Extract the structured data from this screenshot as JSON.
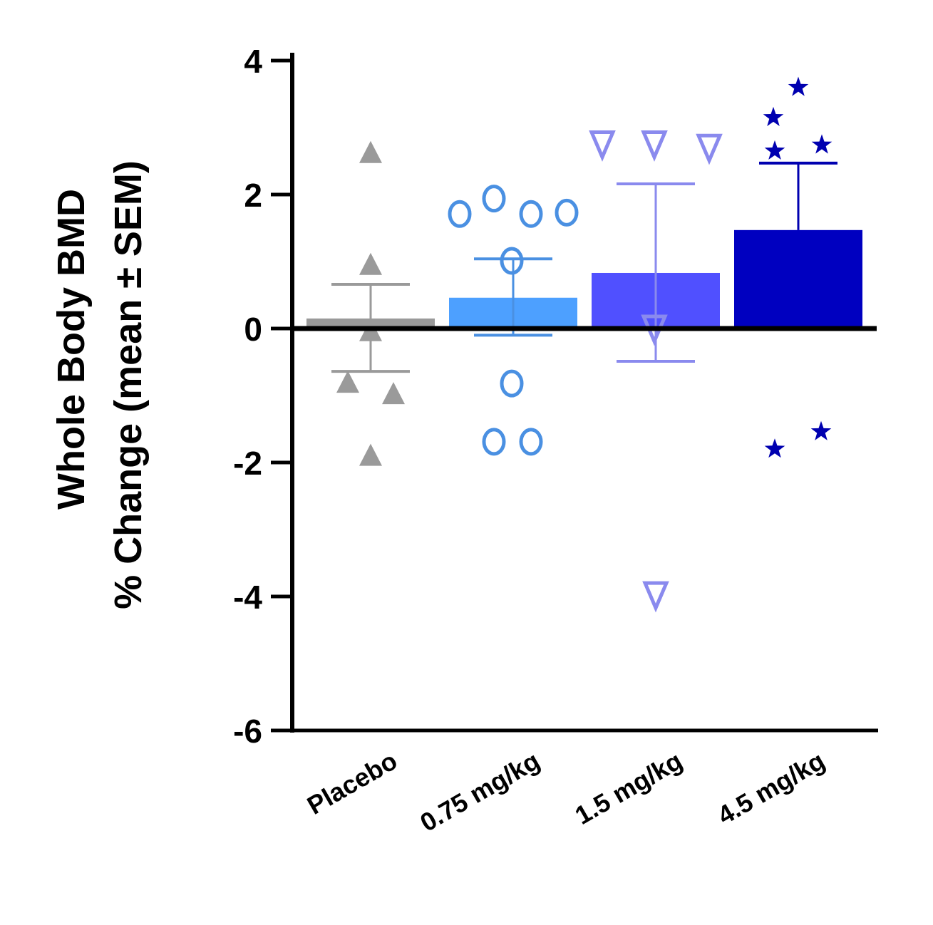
{
  "chart_data": {
    "type": "bar",
    "title": "",
    "ylabel_line1": "Whole Body BMD",
    "ylabel_line2": "% Change (mean ± SEM)",
    "xlabel": "",
    "ylim": [
      -6,
      4
    ],
    "yticks": [
      4,
      2,
      0,
      -2,
      -4,
      -6
    ],
    "ytick_labels": [
      "4",
      "2",
      "0",
      "-2",
      "-4",
      "-6"
    ],
    "grid": false,
    "categories": [
      "Placebo",
      "0.75 mg/kg",
      "1.5 mg/kg",
      "4.5 mg/kg"
    ],
    "means": [
      0.15,
      0.46,
      0.83,
      1.47
    ],
    "sem_upper": [
      0.66,
      1.04,
      2.16,
      2.47
    ],
    "sem_lower": [
      -0.64,
      -0.1,
      -0.49,
      1.47
    ],
    "points": [
      [
        2.62,
        0.95,
        -0.04,
        -0.81,
        -0.98,
        -1.9
      ],
      [
        1.71,
        1.94,
        1.71,
        1.73,
        1.01,
        -0.82,
        -1.69,
        -1.69
      ],
      [
        2.75,
        2.75,
        2.7,
        0.0,
        -3.98
      ],
      [
        3.6,
        3.15,
        2.74,
        2.65,
        -1.8,
        -1.54
      ]
    ],
    "markers": [
      "triangle-up",
      "circle-open",
      "triangle-down-open",
      "star"
    ],
    "bar_colors": [
      "#9a9a9a",
      "#4da0ff",
      "#5050ff",
      "#0000c0"
    ],
    "marker_colors": [
      "#9a9a9a",
      "#4a90e2",
      "#8a8aee",
      "#0000b0"
    ]
  }
}
